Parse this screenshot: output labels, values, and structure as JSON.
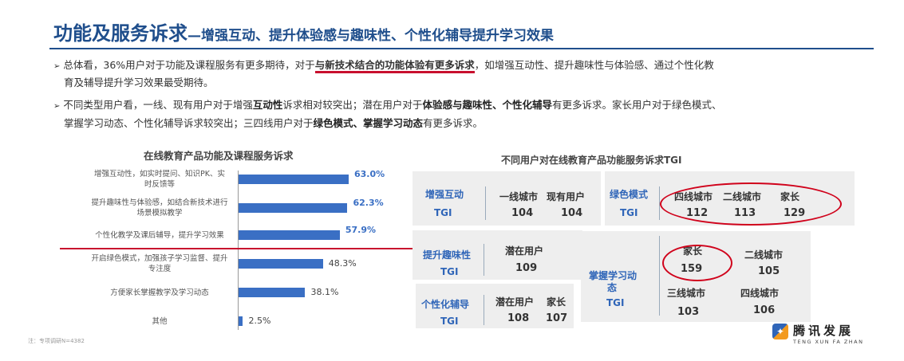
{
  "header": {
    "title_main": "功能及服务诉求",
    "title_sub": "—增强互动、提升体验感与趣味性、个性化辅导提升学习效果"
  },
  "bullets": {
    "b1_pre": "总体看，36%用户对于功能及课程服务有更多期待，对于",
    "b1_ul": "与新技术结合的功能体验有更多诉求",
    "b1_post": "，如增强互动性、提升趣味性与体验感、通过个性化教",
    "b1_line2": "育及辅导提升学习效果最受期待。",
    "b2_p1": "不同类型用户看，一线、现有用户对于增强",
    "b2_b1": "互动性",
    "b2_p2": "诉求相对较突出；潜在用户对于",
    "b2_b2": "体验感与趣味性、个性化辅导",
    "b2_p3": "有更多诉求。家长用户对于绿色模式、",
    "b2_l2_p1": "掌握学习动态、个性化辅导诉求较突出；三四线用户对于",
    "b2_l2_b1": "绿色模式、掌握学习动态",
    "b2_l2_p2": "有更多诉求。"
  },
  "chart_data": {
    "type": "bar",
    "title": "在线教育产品功能及课程服务诉求",
    "categories": [
      "增强互动性，如实时提问、知识PK、实时反馈等",
      "提升趣味性与体验感，如结合新技术进行场景模拟教学",
      "个性化教学及课后辅导，提升学习效果",
      "开启绿色模式，加强孩子学习监督、提升专注度",
      "方便家长掌握教学及学习动态",
      "其他"
    ],
    "labels": [
      [
        "增强互动性，如实时提问、知识PK、实",
        "时反馈等"
      ],
      [
        "提升趣味性与体验感，如结合新技术进行",
        "场景模拟教学"
      ],
      [
        "个性化教学及课后辅导，提升学习效果"
      ],
      [
        "开启绿色模式，加强孩子学习监督、提升",
        "专注度"
      ],
      [
        "方便家长掌握教学及学习动态"
      ],
      [
        "其他"
      ]
    ],
    "values": [
      63.0,
      62.3,
      57.9,
      48.3,
      38.1,
      2.5
    ],
    "value_labels": [
      "63.0%",
      "62.3%",
      "57.9%",
      "48.3%",
      "38.1%",
      "2.5%"
    ],
    "xlim": [
      0,
      100
    ]
  },
  "tgi": {
    "title": "不同用户对在线教育产品功能服务诉求TGI",
    "tgi_label": "TGI",
    "p1": {
      "name": "增强互动",
      "cols": [
        "一线城市",
        "现有用户"
      ],
      "vals": [
        "104",
        "104"
      ]
    },
    "p2": {
      "name": "绿色模式",
      "cols": [
        "四线城市",
        "二线城市",
        "家长"
      ],
      "vals": [
        "112",
        "113",
        "129"
      ]
    },
    "p3": {
      "name": "提升趣味性",
      "cols": [
        "潜在用户"
      ],
      "vals": [
        "109"
      ]
    },
    "p4": {
      "name": "掌握学习动",
      "name2": "态",
      "cols": [
        "家长",
        "二线城市",
        "三线城市",
        "四线城市"
      ],
      "vals": [
        "159",
        "105",
        "103",
        "106"
      ]
    },
    "p5": {
      "name": "个性化辅导",
      "cols": [
        "潜在用户",
        "家长"
      ],
      "vals": [
        "108",
        "107"
      ]
    }
  },
  "note": "注：专项调研N=4382",
  "logo": {
    "cn": "腾讯发展",
    "en": "TENG XUN FA ZHAN"
  }
}
